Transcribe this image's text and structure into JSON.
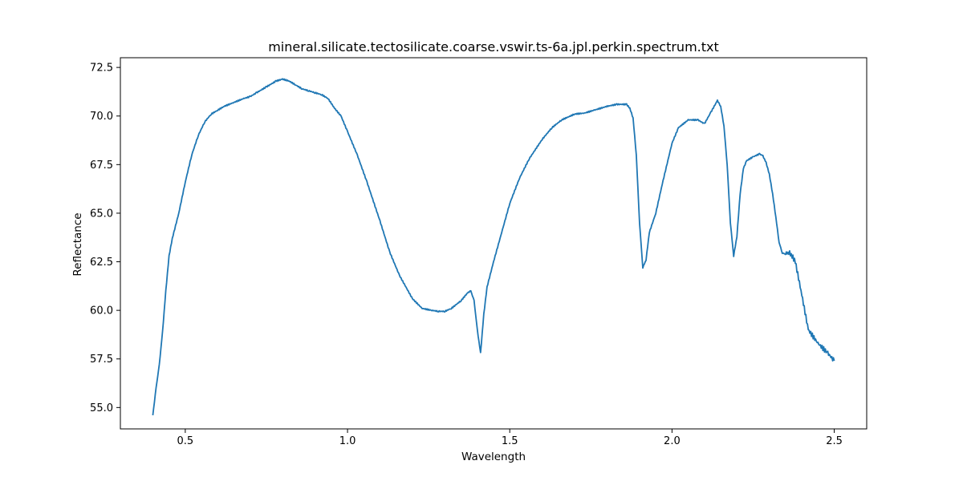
{
  "chart_data": {
    "type": "line",
    "title": "mineral.silicate.tectosilicate.coarse.vswir.ts-6a.jpl.perkin.spectrum.txt",
    "xlabel": "Wavelength",
    "ylabel": "Reflectance",
    "xlim": [
      0.3,
      2.6
    ],
    "ylim": [
      53.9,
      73.0
    ],
    "xticks": [
      0.5,
      1.0,
      1.5,
      2.0,
      2.5
    ],
    "yticks": [
      55.0,
      57.5,
      60.0,
      62.5,
      65.0,
      67.5,
      70.0,
      72.5
    ],
    "xtick_labels": [
      "0.5",
      "1.0",
      "1.5",
      "2.0",
      "2.5"
    ],
    "ytick_labels": [
      "55.0",
      "57.5",
      "60.0",
      "62.5",
      "65.0",
      "67.5",
      "70.0",
      "72.5"
    ],
    "grid": false,
    "color": "#1f77b4",
    "series": [
      {
        "x": [
          0.4,
          0.41,
          0.42,
          0.43,
          0.44,
          0.45,
          0.46,
          0.48,
          0.5,
          0.52,
          0.54,
          0.56,
          0.58,
          0.6,
          0.62,
          0.65,
          0.68,
          0.7,
          0.72,
          0.75,
          0.78,
          0.8,
          0.82,
          0.84,
          0.86,
          0.88,
          0.9,
          0.92,
          0.94,
          0.96,
          0.98,
          1.0,
          1.03,
          1.06,
          1.1,
          1.13,
          1.16,
          1.2,
          1.23,
          1.26,
          1.28,
          1.3,
          1.32,
          1.35,
          1.37,
          1.38,
          1.39,
          1.4,
          1.41,
          1.42,
          1.43,
          1.45,
          1.48,
          1.5,
          1.53,
          1.56,
          1.6,
          1.63,
          1.66,
          1.7,
          1.73,
          1.76,
          1.8,
          1.83,
          1.86,
          1.87,
          1.88,
          1.89,
          1.9,
          1.91,
          1.92,
          1.93,
          1.95,
          1.97,
          2.0,
          2.02,
          2.05,
          2.08,
          2.1,
          2.12,
          2.14,
          2.15,
          2.16,
          2.17,
          2.18,
          2.19,
          2.2,
          2.21,
          2.22,
          2.23,
          2.25,
          2.27,
          2.28,
          2.29,
          2.3,
          2.31,
          2.32,
          2.33,
          2.34,
          2.35,
          2.36,
          2.37,
          2.38,
          2.4,
          2.42,
          2.45,
          2.48,
          2.5
        ],
        "y": [
          54.6,
          56.0,
          57.2,
          58.9,
          61.0,
          62.8,
          63.7,
          65.0,
          66.6,
          68.0,
          69.0,
          69.7,
          70.1,
          70.3,
          70.5,
          70.7,
          70.9,
          71.0,
          71.2,
          71.5,
          71.8,
          71.9,
          71.8,
          71.6,
          71.4,
          71.3,
          71.2,
          71.1,
          70.9,
          70.4,
          70.0,
          69.2,
          68.0,
          66.6,
          64.6,
          63.0,
          61.8,
          60.6,
          60.1,
          60.0,
          59.95,
          59.95,
          60.1,
          60.5,
          60.9,
          61.0,
          60.5,
          59.0,
          57.8,
          59.8,
          61.2,
          62.5,
          64.3,
          65.5,
          66.8,
          67.8,
          68.8,
          69.4,
          69.8,
          70.1,
          70.15,
          70.3,
          70.5,
          70.6,
          70.6,
          70.4,
          69.9,
          68.0,
          64.5,
          62.2,
          62.6,
          64.0,
          65.0,
          66.5,
          68.6,
          69.4,
          69.8,
          69.8,
          69.6,
          70.2,
          70.8,
          70.5,
          69.5,
          67.5,
          64.5,
          62.8,
          63.8,
          66.0,
          67.3,
          67.7,
          67.9,
          68.05,
          67.95,
          67.6,
          67.0,
          66.0,
          64.8,
          63.5,
          62.95,
          62.9,
          63.0,
          62.8,
          62.5,
          60.8,
          59.0,
          58.3,
          57.8,
          57.4
        ]
      }
    ]
  }
}
